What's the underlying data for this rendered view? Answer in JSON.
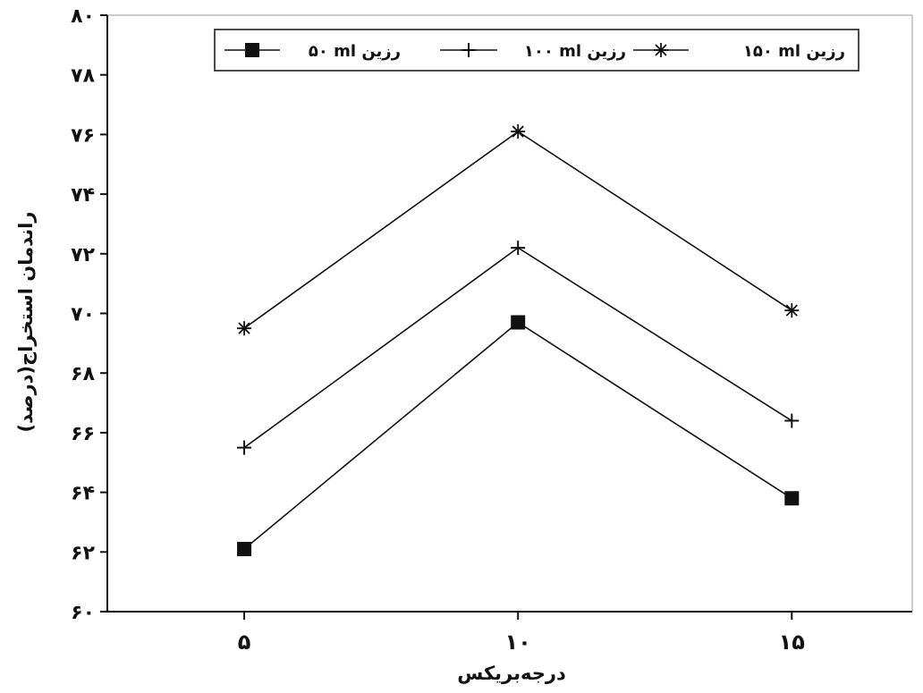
{
  "chart_data": {
    "type": "line",
    "xlabel": "درجه‌بریکس",
    "ylabel": "راندمان استخراج(درصد)",
    "x": [
      5,
      10,
      15
    ],
    "x_tick_labels": [
      "۵",
      "۱۰",
      "۱۵"
    ],
    "ylim": [
      60,
      80
    ],
    "y_ticks": [
      60,
      62,
      64,
      66,
      68,
      70,
      72,
      74,
      76,
      78,
      80
    ],
    "y_tick_labels": [
      "۶۰",
      "۶۲",
      "۶۴",
      "۶۶",
      "۶۸",
      "۷۰",
      "۷۲",
      "۷۴",
      "۷۶",
      "۷۸",
      "۸۰"
    ],
    "legend_position": "top",
    "series": [
      {
        "name": "۵۰ ml رزین",
        "marker": "square",
        "values": [
          62.1,
          69.7,
          63.8
        ]
      },
      {
        "name": "۱۰۰ ml رزین",
        "marker": "plus",
        "values": [
          65.5,
          72.2,
          66.4
        ]
      },
      {
        "name": "۱۵۰ ml رزین",
        "marker": "asterisk",
        "values": [
          69.5,
          76.1,
          70.1
        ]
      }
    ]
  }
}
